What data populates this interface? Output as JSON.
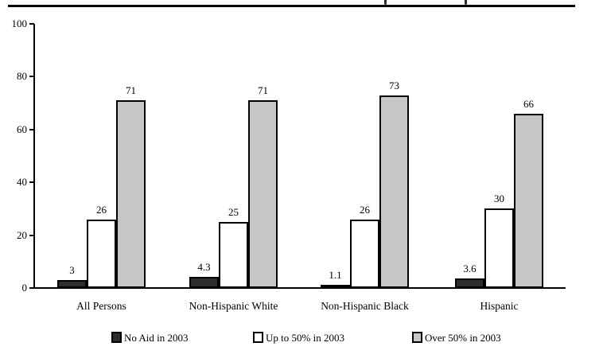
{
  "colors": {
    "no_aid_fill": "#2e2e2e",
    "up_to_50_fill": "#ffffff",
    "over_50_fill": "#c6c6c8",
    "bar_border": "#000000",
    "axis": "#000000"
  },
  "chart_data": {
    "type": "bar",
    "categories": [
      "All Persons",
      "Non-Hispanic White",
      "Non-Hispanic Black",
      "Hispanic"
    ],
    "series": [
      {
        "name": "No Aid in 2003",
        "color": "#2e2e2e",
        "values": [
          3,
          4.3,
          1.1,
          3.6
        ]
      },
      {
        "name": "Up to 50% in 2003",
        "color": "#ffffff",
        "values": [
          26,
          25,
          26,
          30
        ]
      },
      {
        "name": "Over 50% in 2003",
        "color": "#c6c6c8",
        "values": [
          71,
          71,
          73,
          66
        ]
      }
    ],
    "value_labels": [
      "3",
      "4.3",
      "1.1",
      "3.6",
      "26",
      "25",
      "26",
      "30",
      "71",
      "71",
      "73",
      "66"
    ],
    "title": "",
    "xlabel": "",
    "ylabel": "",
    "ylim": [
      0,
      100
    ],
    "yticks": [
      "0",
      "20",
      "40",
      "60",
      "80",
      "100"
    ],
    "grid": false,
    "legend_position": "bottom"
  }
}
